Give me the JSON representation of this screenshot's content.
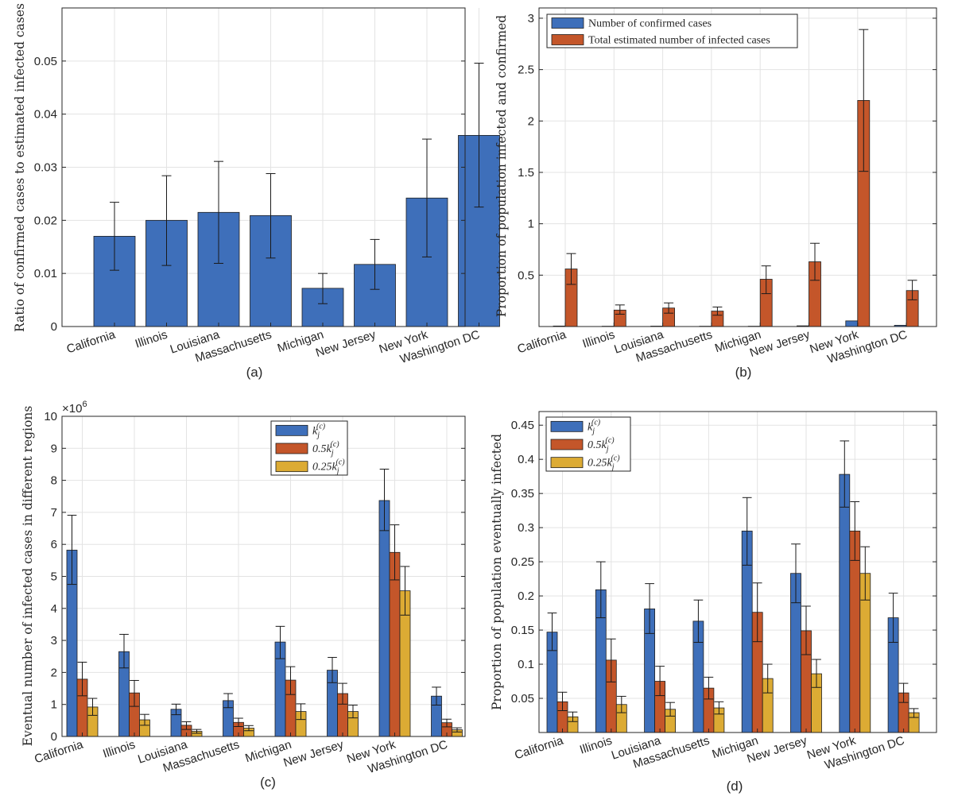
{
  "colors": {
    "blue": "#3e6fba",
    "orange": "#c4562a",
    "yellow": "#dcab34"
  },
  "chart_data": [
    {
      "type": "bar",
      "caption": "(a)",
      "ylabel": "Ratio of confirmed cases to estimated infected cases",
      "ylim": [
        0,
        0.06
      ],
      "yticks": [
        0,
        0.01,
        0.02,
        0.03,
        0.04,
        0.05
      ],
      "ytick_labels": [
        "0",
        "0.01",
        "0.02",
        "0.03",
        "0.04",
        "0.05"
      ],
      "grid": true,
      "categories": [
        "California",
        "Illinois",
        "Louisiana",
        "Massachusetts",
        "Michigan",
        "New Jersey",
        "New York",
        "Washington DC"
      ],
      "series": [
        {
          "color_key": "blue",
          "values": [
            0.017,
            0.02,
            0.0215,
            0.0209,
            0.0072,
            0.0117,
            0.0242,
            0.036
          ],
          "err_low": [
            0.0106,
            0.0115,
            0.0119,
            0.0129,
            0.0043,
            0.007,
            0.0131,
            0.0225
          ],
          "err_high": [
            0.0234,
            0.0284,
            0.0311,
            0.0288,
            0.01,
            0.0164,
            0.0353,
            0.0496
          ]
        }
      ]
    },
    {
      "type": "bar",
      "caption": "(b)",
      "ylabel": "Proportion of population infected and confirmed",
      "ylim": [
        0,
        3.1
      ],
      "yticks": [
        0.5,
        1,
        1.5,
        2,
        2.5,
        3
      ],
      "ytick_labels": [
        "0.5",
        "1",
        "1.5",
        "2",
        "2.5",
        "3"
      ],
      "grid": true,
      "legend_position": "top-left",
      "categories": [
        "California",
        "Illinois",
        "Louisiana",
        "Massachusetts",
        "Michigan",
        "New Jersey",
        "New York",
        "Washington DC"
      ],
      "series": [
        {
          "name": "Number of confirmed cases",
          "color_key": "blue",
          "values": [
            0.005,
            0.003,
            0.004,
            0.003,
            0.003,
            0.007,
            0.055,
            0.012
          ]
        },
        {
          "name": "Total estimated number of infected cases",
          "color_key": "orange",
          "values": [
            0.56,
            0.16,
            0.18,
            0.15,
            0.46,
            0.63,
            2.2,
            0.35
          ],
          "err_low": [
            0.41,
            0.12,
            0.13,
            0.11,
            0.32,
            0.45,
            1.51,
            0.26
          ],
          "err_high": [
            0.71,
            0.21,
            0.23,
            0.19,
            0.59,
            0.81,
            2.89,
            0.45
          ]
        }
      ]
    },
    {
      "type": "bar",
      "caption": "(c)",
      "ylabel": "Eventual number of infected cases in different regions",
      "yexponent": "×10",
      "yexponent_sup": "6",
      "ylim": [
        0,
        10
      ],
      "yticks": [
        0,
        1,
        2,
        3,
        4,
        5,
        6,
        7,
        8,
        9,
        10
      ],
      "ytick_labels": [
        "0",
        "1",
        "2",
        "3",
        "4",
        "5",
        "6",
        "7",
        "8",
        "9",
        "10"
      ],
      "grid": true,
      "legend_position": "top-right",
      "categories": [
        "California",
        "Illinois",
        "Louisiana",
        "Massachusetts",
        "Michigan",
        "New Jersey",
        "New York",
        "Washington DC"
      ],
      "series": [
        {
          "name": "k",
          "name_sub": "j",
          "name_sup": "(c)",
          "color_key": "blue",
          "values": [
            5.82,
            2.65,
            0.85,
            1.12,
            2.95,
            2.07,
            7.37,
            1.26
          ],
          "err_low": [
            4.75,
            2.14,
            0.68,
            0.9,
            2.43,
            1.68,
            6.43,
            0.98
          ],
          "err_high": [
            6.91,
            3.19,
            1.01,
            1.34,
            3.44,
            2.47,
            8.35,
            1.54
          ]
        },
        {
          "name": "0.5k",
          "name_sub": "j",
          "name_sup": "(c)",
          "color_key": "orange",
          "values": [
            1.79,
            1.36,
            0.35,
            0.44,
            1.76,
            1.34,
            5.75,
            0.43
          ],
          "err_low": [
            1.27,
            0.94,
            0.22,
            0.31,
            1.31,
            1.01,
            4.89,
            0.3
          ],
          "err_high": [
            2.32,
            1.75,
            0.46,
            0.57,
            2.18,
            1.66,
            6.61,
            0.54
          ]
        },
        {
          "name": "0.25k",
          "name_sub": "j",
          "name_sup": "(c)",
          "color_key": "yellow",
          "values": [
            0.92,
            0.52,
            0.16,
            0.26,
            0.78,
            0.78,
            4.55,
            0.21
          ],
          "err_low": [
            0.66,
            0.35,
            0.1,
            0.18,
            0.53,
            0.58,
            3.79,
            0.14
          ],
          "err_high": [
            1.19,
            0.69,
            0.22,
            0.34,
            1.02,
            0.98,
            5.31,
            0.27
          ]
        }
      ]
    },
    {
      "type": "bar",
      "caption": "(d)",
      "ylabel": "Proportion of population eventually infected",
      "ylim": [
        0,
        0.47
      ],
      "yticks": [
        0.05,
        0.1,
        0.15,
        0.2,
        0.25,
        0.3,
        0.35,
        0.4,
        0.45
      ],
      "ytick_labels": [
        "0.05",
        "0.1",
        "0.15",
        "0.2",
        "0.25",
        "0.3",
        "0.35",
        "0.4",
        "0.45"
      ],
      "grid": true,
      "legend_position": "top-left",
      "categories": [
        "California",
        "Illinois",
        "Louisiana",
        "Massachusetts",
        "Michigan",
        "New Jersey",
        "New York",
        "Washington DC"
      ],
      "series": [
        {
          "name": "k",
          "name_sub": "j",
          "name_sup": "(c)",
          "color_key": "blue",
          "values": [
            0.147,
            0.209,
            0.181,
            0.163,
            0.295,
            0.233,
            0.378,
            0.168
          ],
          "err_low": [
            0.12,
            0.168,
            0.145,
            0.132,
            0.245,
            0.19,
            0.33,
            0.132
          ],
          "err_high": [
            0.175,
            0.25,
            0.218,
            0.194,
            0.344,
            0.276,
            0.427,
            0.204
          ]
        },
        {
          "name": "0.5k",
          "name_sub": "j",
          "name_sup": "(c)",
          "color_key": "orange",
          "values": [
            0.045,
            0.106,
            0.075,
            0.065,
            0.176,
            0.149,
            0.295,
            0.058
          ],
          "err_low": [
            0.032,
            0.074,
            0.054,
            0.049,
            0.133,
            0.114,
            0.252,
            0.044
          ],
          "err_high": [
            0.059,
            0.137,
            0.097,
            0.081,
            0.219,
            0.185,
            0.338,
            0.072
          ]
        },
        {
          "name": "0.25k",
          "name_sub": "j",
          "name_sup": "(c)",
          "color_key": "yellow",
          "values": [
            0.023,
            0.041,
            0.034,
            0.036,
            0.079,
            0.086,
            0.233,
            0.029
          ],
          "err_low": [
            0.016,
            0.029,
            0.024,
            0.027,
            0.058,
            0.066,
            0.194,
            0.022
          ],
          "err_high": [
            0.03,
            0.053,
            0.044,
            0.045,
            0.1,
            0.107,
            0.272,
            0.035
          ]
        }
      ]
    }
  ]
}
